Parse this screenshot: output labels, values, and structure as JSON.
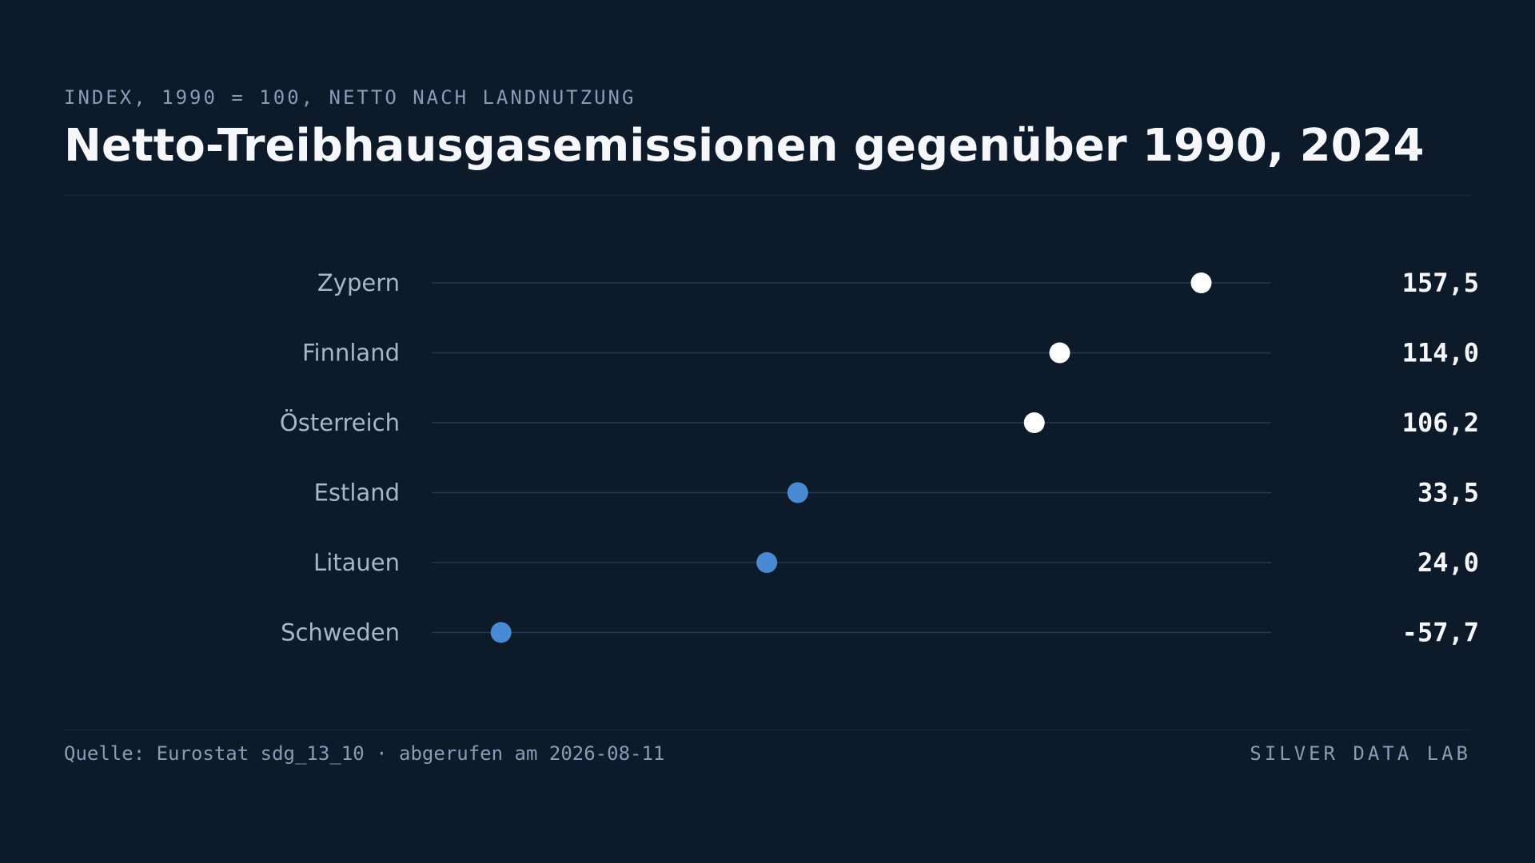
{
  "header": {
    "eyebrow": "INDEX, 1990 = 100, NETTO NACH LANDNUTZUNG",
    "title": "Netto-Treibhausgasemissionen gegenüber 1990, 2024"
  },
  "footer": {
    "source": "Quelle: Eurostat sdg_13_10 · abgerufen am 2026-08-11",
    "brand": "SILVER DATA LAB"
  },
  "colors": {
    "background": "#0d1a2a",
    "above_baseline": "#ffffff",
    "below_baseline": "#4a8ad4",
    "track": "#26374d",
    "label": "#a9b6c9",
    "value": "#f5f7fa"
  },
  "chart_data": {
    "type": "scatter",
    "subtype": "dot-plot",
    "title": "Netto-Treibhausgasemissionen gegenüber 1990, 2024",
    "categories": [
      "Zypern",
      "Finnland",
      "Österreich",
      "Estland",
      "Litauen",
      "Schweden"
    ],
    "values": [
      157.5,
      114.0,
      106.2,
      33.5,
      24.0,
      -57.7
    ],
    "value_labels": [
      "157,5",
      "114,0",
      "106,2",
      "33,5",
      "24,0",
      "-57,7"
    ],
    "xlim": [
      -79,
      179
    ],
    "baseline": 100,
    "grid": false,
    "legend": "none"
  }
}
